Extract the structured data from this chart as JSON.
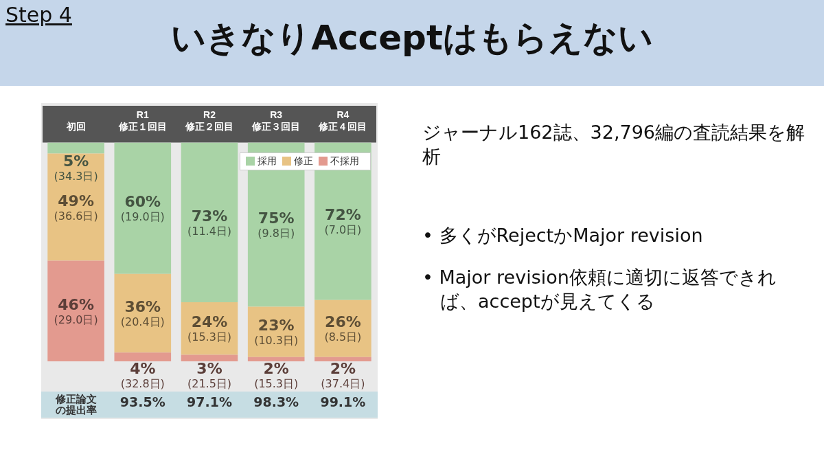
{
  "chart_data": {
    "type": "bar",
    "title": "いきなりAcceptはもらえない",
    "subtitle": "Step 4",
    "categories": [
      "初回",
      "R1\n修正１回目",
      "R2\n修正２回目",
      "R3\n修正３回目",
      "R4\n修正４回目"
    ],
    "stacked": true,
    "legend": "top right",
    "series": [
      {
        "name": "不採用",
        "color": "#e39a8f",
        "values": [
          46,
          4,
          3,
          2,
          2
        ],
        "value_labels": [
          "46%\n(29.0日)",
          "4%\n(32.8日)",
          "3%\n(21.5日)",
          "2%\n(15.3日)",
          "2%\n(37.4日)"
        ]
      },
      {
        "name": "修正",
        "color": "#e8c384",
        "values": [
          49,
          36,
          24,
          23,
          26
        ],
        "value_labels": [
          "49%\n(36.6日)",
          "36%\n(20.4日)",
          "24%\n(15.3日)",
          "23%\n(10.3日)",
          "26%\n(8.5日)"
        ]
      },
      {
        "name": "採用",
        "color": "#a9d3a6",
        "values": [
          5,
          60,
          73,
          75,
          72
        ],
        "value_labels": [
          "5%\n(34.3日)",
          "60%\n(19.0日)",
          "73%\n(11.4日)",
          "75%\n(9.8日)",
          "72%\n(7.0日)"
        ]
      }
    ],
    "annotations": [
      "ジャーナル162誌、32,796編の査読結果を解析",
      "• 多くがRejectかMajor revision",
      "• Major revision依頼に適切に返答できれば、acceptが見えてくる",
      "修正論文の提出率",
      "93.5%",
      "97.1%",
      "98.3%",
      "99.1%"
    ]
  }
}
